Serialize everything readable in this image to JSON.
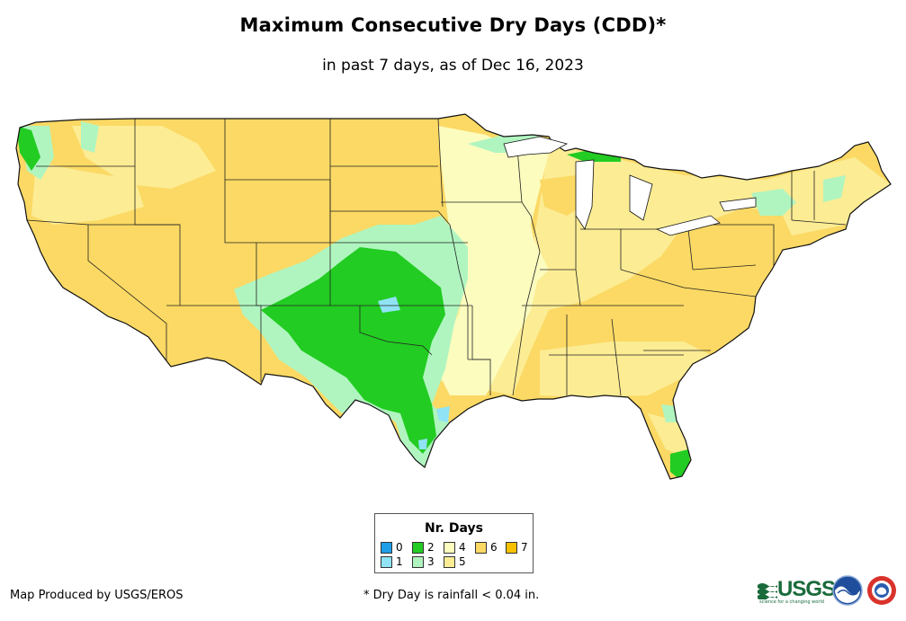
{
  "title": "Maximum Consecutive Dry Days (CDD)*",
  "subtitle": "in past 7 days, as of Dec 16, 2023",
  "legend": {
    "title": "Nr. Days",
    "items": [
      {
        "label": "0",
        "color": "#1e9fe8"
      },
      {
        "label": "1",
        "color": "#8fe3f5"
      },
      {
        "label": "2",
        "color": "#22cc22"
      },
      {
        "label": "3",
        "color": "#b0f5c0"
      },
      {
        "label": "4",
        "color": "#fbfcbe"
      },
      {
        "label": "5",
        "color": "#fcec94"
      },
      {
        "label": "6",
        "color": "#fbd964"
      },
      {
        "label": "7",
        "color": "#f7c000"
      }
    ]
  },
  "credit": "Map Produced by USGS/EROS",
  "footnote": "* Dry Day is rainfall < 0.04 in.",
  "logos": {
    "usgs_text": "USGS",
    "usgs_tagline": "science for a changing world",
    "noaa": "NOAA",
    "nws": "National Weather Service"
  },
  "colors": {
    "border": "#222222",
    "background": "#ffffff"
  }
}
